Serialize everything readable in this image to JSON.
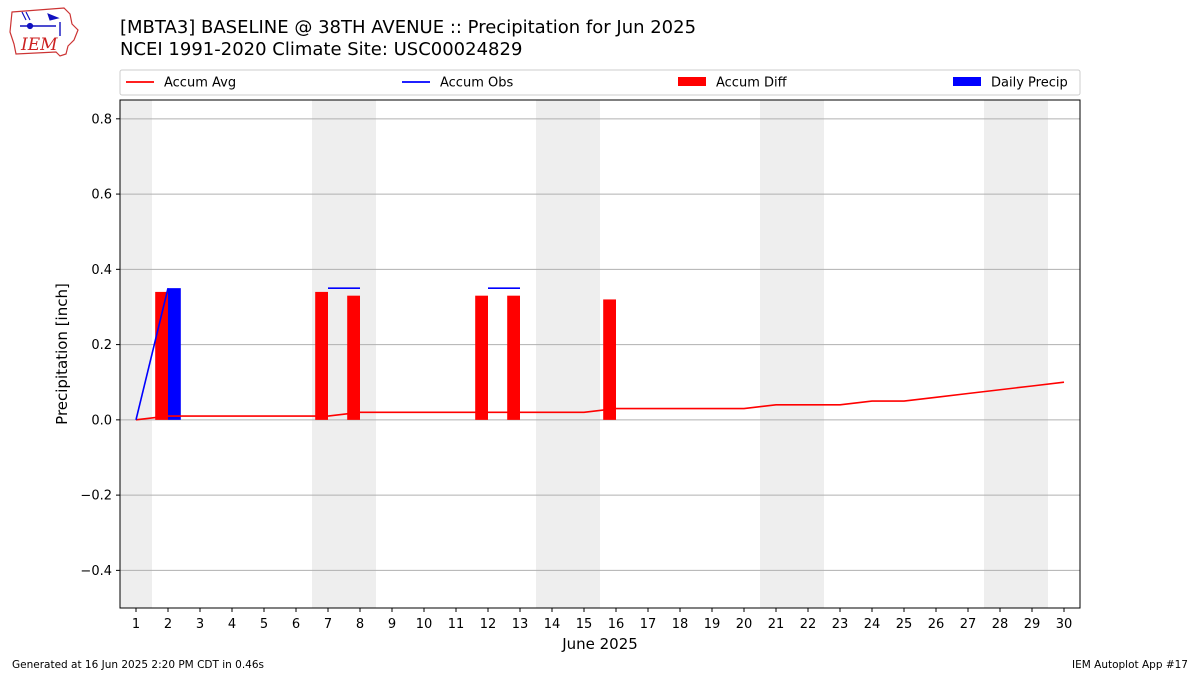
{
  "header": {
    "title_line1": "[MBTA3] BASELINE @ 38TH AVENUE :: Precipitation for Jun 2025",
    "title_line2": "NCEI 1991-2020 Climate Site: USC00024829",
    "logo_text": "IEM"
  },
  "footer": {
    "left": "Generated at 16 Jun 2025 2:20 PM CDT in 0.46s",
    "right": "IEM Autoplot App #17"
  },
  "chart_data": {
    "type": "bar",
    "xlabel": "June 2025",
    "ylabel": "Precipitation [inch]",
    "xlim": [
      0.5,
      30.5
    ],
    "ylim": [
      -0.5,
      0.85
    ],
    "x_ticks": [
      "1",
      "2",
      "3",
      "4",
      "5",
      "6",
      "7",
      "8",
      "9",
      "10",
      "11",
      "12",
      "13",
      "14",
      "15",
      "16",
      "17",
      "18",
      "19",
      "20",
      "21",
      "22",
      "23",
      "24",
      "25",
      "26",
      "27",
      "28",
      "29",
      "30"
    ],
    "y_ticks": [
      -0.4,
      -0.2,
      0.0,
      0.2,
      0.4,
      0.6,
      0.8
    ],
    "y_tick_labels": [
      "−0.4",
      "−0.2",
      "0.0",
      "0.2",
      "0.4",
      "0.6",
      "0.8"
    ],
    "grid": "horizontal",
    "weekend_shading": [
      [
        0.5,
        1.5
      ],
      [
        6.5,
        8.5
      ],
      [
        13.5,
        15.5
      ],
      [
        20.5,
        22.5
      ],
      [
        27.5,
        29.5
      ]
    ],
    "legend_placement": "top",
    "legend": [
      {
        "label": "Accum Avg",
        "kind": "line",
        "color": "#ff0000"
      },
      {
        "label": "Accum Obs",
        "kind": "line",
        "color": "#0000ff"
      },
      {
        "label": "Accum Diff",
        "kind": "bar",
        "color": "#ff0000"
      },
      {
        "label": "Daily Precip",
        "kind": "bar",
        "color": "#0000ff"
      }
    ],
    "series": [
      {
        "name": "Accum Avg",
        "kind": "line",
        "color": "#ff0000",
        "x": [
          1,
          2,
          3,
          4,
          5,
          6,
          7,
          8,
          9,
          10,
          11,
          12,
          13,
          14,
          15,
          16,
          17,
          18,
          19,
          20,
          21,
          22,
          23,
          24,
          25,
          26,
          27,
          28,
          29,
          30
        ],
        "values": [
          0.0,
          0.01,
          0.01,
          0.01,
          0.01,
          0.01,
          0.01,
          0.02,
          0.02,
          0.02,
          0.02,
          0.02,
          0.02,
          0.02,
          0.02,
          0.03,
          0.03,
          0.03,
          0.03,
          0.03,
          0.04,
          0.04,
          0.04,
          0.05,
          0.05,
          0.06,
          0.07,
          0.08,
          0.09,
          0.1
        ]
      },
      {
        "name": "Accum Obs",
        "kind": "line",
        "color": "#0000ff",
        "segments": [
          {
            "x": [
              1,
              2
            ],
            "values": [
              0.0,
              0.35
            ]
          },
          {
            "x": [
              7,
              8
            ],
            "values": [
              0.35,
              0.35
            ]
          },
          {
            "x": [
              12,
              13
            ],
            "values": [
              0.35,
              0.35
            ]
          }
        ]
      },
      {
        "name": "Accum Diff",
        "kind": "bar",
        "color": "#ff0000",
        "x": [
          2,
          7,
          8,
          12,
          13,
          16
        ],
        "values": [
          0.34,
          0.34,
          0.33,
          0.33,
          0.33,
          0.32
        ]
      },
      {
        "name": "Daily Precip",
        "kind": "bar",
        "color": "#0000ff",
        "x": [
          2
        ],
        "values": [
          0.35
        ]
      }
    ]
  }
}
